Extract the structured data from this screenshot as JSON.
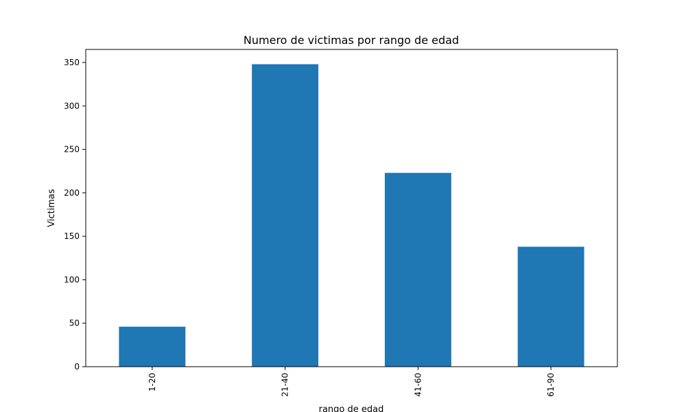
{
  "chart_data": {
    "type": "bar",
    "title": "Numero de victimas por rango de edad",
    "xlabel": "rango de edad",
    "ylabel": "Victimas",
    "categories": [
      "1-20",
      "21-40",
      "41-60",
      "61-90"
    ],
    "values": [
      46,
      348,
      223,
      138
    ],
    "ylim": [
      0,
      365
    ],
    "yticks": [
      0,
      50,
      100,
      150,
      200,
      250,
      300,
      350
    ],
    "bar_color": "#1f77b4",
    "grid": false,
    "legend": "none"
  }
}
